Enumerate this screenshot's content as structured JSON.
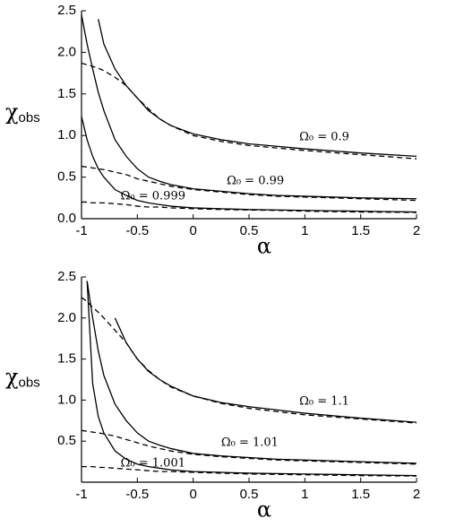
{
  "chart_data": [
    {
      "type": "line",
      "xlabel": "α",
      "ylabel": "χ",
      "ylabel_sub": "obs",
      "x": [
        -1,
        -0.95,
        -0.9,
        -0.85,
        -0.8,
        -0.7,
        -0.6,
        -0.5,
        -0.4,
        -0.3,
        -0.2,
        0,
        0.25,
        0.5,
        0.75,
        1,
        1.5,
        2
      ],
      "xlim": [
        -1,
        2
      ],
      "xticks": [
        -1,
        -0.5,
        0,
        0.5,
        1,
        1.5,
        2
      ],
      "ylim": [
        0,
        2.5
      ],
      "yticks": [
        {
          "value": 0,
          "label": "0.0"
        },
        0.5,
        {
          "value": 1,
          "label": "1.0"
        },
        1.5,
        {
          "value": 2,
          "label": "2.0"
        },
        2.5
      ],
      "series": [
        {
          "style": "solid",
          "color": "#000000",
          "values": [
            null,
            null,
            null,
            2.4,
            2.1,
            1.8,
            1.6,
            1.45,
            1.3,
            1.2,
            1.12,
            1.02,
            0.95,
            0.9,
            0.87,
            0.84,
            0.79,
            0.75
          ]
        },
        {
          "style": "dashed",
          "color": "#000000",
          "values": [
            1.87,
            1.85,
            1.83,
            1.81,
            1.78,
            1.7,
            1.6,
            1.45,
            1.32,
            1.2,
            1.12,
            1.0,
            0.93,
            0.88,
            0.85,
            0.82,
            0.77,
            0.72
          ]
        },
        {
          "style": "solid",
          "color": "#000000",
          "values": [
            2.45,
            2.1,
            1.8,
            1.52,
            1.3,
            0.95,
            0.75,
            0.6,
            0.5,
            0.45,
            0.41,
            0.36,
            0.33,
            0.3,
            0.28,
            0.27,
            0.25,
            0.24
          ]
        },
        {
          "style": "dashed",
          "color": "#000000",
          "values": [
            0.63,
            0.62,
            0.61,
            0.6,
            0.59,
            0.56,
            0.53,
            0.48,
            0.45,
            0.42,
            0.39,
            0.35,
            0.32,
            0.29,
            0.27,
            0.26,
            0.24,
            0.22
          ]
        },
        {
          "style": "solid",
          "color": "#000000",
          "values": [
            1.23,
            0.95,
            0.75,
            0.6,
            0.5,
            0.35,
            0.28,
            0.22,
            0.19,
            0.17,
            0.15,
            0.13,
            0.12,
            0.11,
            0.105,
            0.1,
            0.09,
            0.08
          ]
        },
        {
          "style": "dashed",
          "color": "#000000",
          "values": [
            0.2,
            0.2,
            0.19,
            0.19,
            0.19,
            0.18,
            0.17,
            0.15,
            0.14,
            0.14,
            0.13,
            0.12,
            0.11,
            0.105,
            0.1,
            0.09,
            0.08,
            0.075
          ]
        }
      ],
      "annotations": [
        "Ω₀ = 0.9",
        "Ω₀ = 0.99",
        "Ω₀ = 0.999"
      ]
    },
    {
      "type": "line",
      "xlabel": "α",
      "ylabel": "χ",
      "ylabel_sub": "obs",
      "x": [
        -1,
        -0.95,
        -0.9,
        -0.85,
        -0.8,
        -0.7,
        -0.6,
        -0.5,
        -0.4,
        -0.3,
        -0.2,
        0,
        0.25,
        0.5,
        0.75,
        1,
        1.5,
        2
      ],
      "xlim": [
        -1,
        2
      ],
      "xticks": [
        -1,
        -0.5,
        0,
        0.5,
        1,
        1.5,
        2
      ],
      "ylim": [
        0,
        2.5
      ],
      "yticks": [
        0.5,
        {
          "value": 1,
          "label": "1.0"
        },
        1.5,
        {
          "value": 2,
          "label": "2.0"
        },
        2.5
      ],
      "series": [
        {
          "style": "solid",
          "color": "#000000",
          "values": [
            null,
            null,
            null,
            null,
            null,
            2.0,
            1.7,
            1.5,
            1.35,
            1.25,
            1.17,
            1.05,
            0.97,
            0.92,
            0.88,
            0.84,
            0.78,
            0.73
          ]
        },
        {
          "style": "dashed",
          "color": "#000000",
          "values": [
            2.25,
            2.2,
            2.13,
            2.07,
            2.0,
            1.85,
            1.7,
            1.5,
            1.36,
            1.25,
            1.16,
            1.05,
            0.96,
            0.9,
            0.86,
            0.82,
            0.77,
            0.72
          ]
        },
        {
          "style": "solid",
          "color": "#000000",
          "values": [
            null,
            2.45,
            2.0,
            1.6,
            1.3,
            0.95,
            0.75,
            0.6,
            0.5,
            0.45,
            0.41,
            0.35,
            0.32,
            0.3,
            0.28,
            0.27,
            0.25,
            0.23
          ]
        },
        {
          "style": "dashed",
          "color": "#000000",
          "values": [
            0.63,
            0.62,
            0.61,
            0.6,
            0.59,
            0.56,
            0.52,
            0.48,
            0.44,
            0.41,
            0.38,
            0.34,
            0.31,
            0.29,
            0.27,
            0.26,
            0.24,
            0.22
          ]
        },
        {
          "style": "solid",
          "color": "#000000",
          "values": [
            null,
            2.45,
            1.2,
            0.8,
            0.6,
            0.38,
            0.28,
            0.22,
            0.19,
            0.17,
            0.15,
            0.13,
            0.12,
            0.11,
            0.105,
            0.1,
            0.09,
            0.08
          ]
        },
        {
          "style": "dashed",
          "color": "#000000",
          "values": [
            0.19,
            0.19,
            0.19,
            0.18,
            0.18,
            0.17,
            0.16,
            0.15,
            0.14,
            0.13,
            0.13,
            0.12,
            0.11,
            0.1,
            0.095,
            0.09,
            0.08,
            0.075
          ]
        }
      ],
      "annotations": [
        "Ω₀ = 1.1",
        "Ω₀ = 1.01",
        "Ω₀ = 1.001"
      ]
    }
  ]
}
